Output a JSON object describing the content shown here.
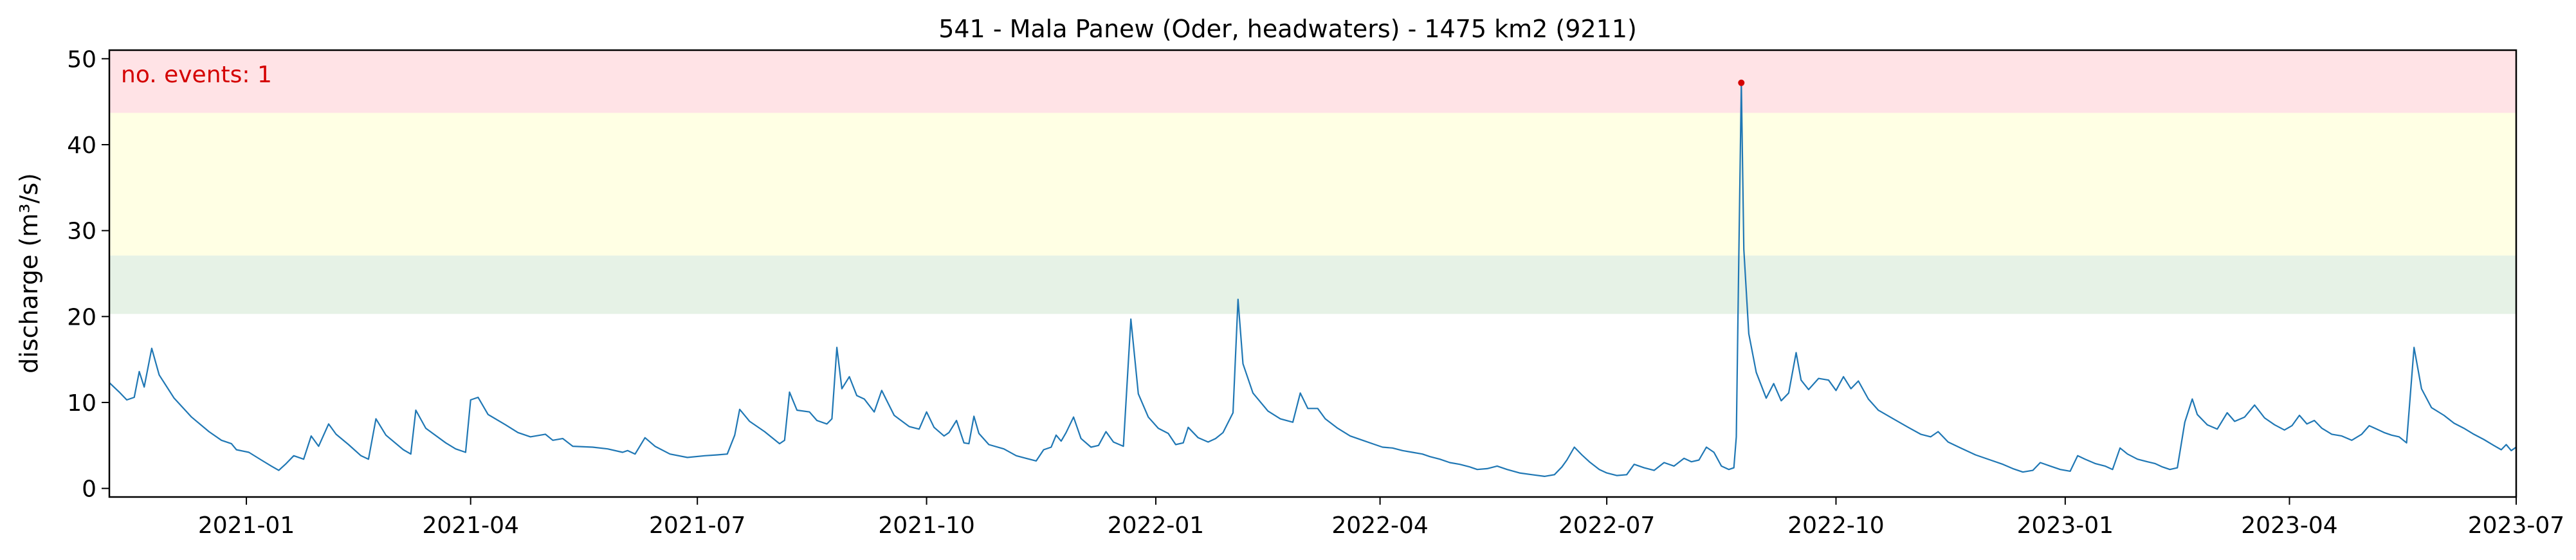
{
  "chart_data": {
    "type": "line",
    "title": "541 - Mala Panew (Oder, headwaters) - 1475 km2 (9211)",
    "xlabel": "",
    "ylabel": "discharge (m³/s)",
    "xlim": [
      "2020-11-07",
      "2023-07-01"
    ],
    "ylim": [
      -1,
      51
    ],
    "x_ticks": [
      "2021-01",
      "2021-04",
      "2021-07",
      "2021-10",
      "2022-01",
      "2022-04",
      "2022-07",
      "2022-10",
      "2023-01",
      "2023-04",
      "2023-07"
    ],
    "y_ticks": [
      0,
      10,
      20,
      30,
      40,
      50
    ],
    "bands": [
      {
        "from": 20.3,
        "to": 27.1,
        "color": "#e6f2e6"
      },
      {
        "from": 27.1,
        "to": 43.7,
        "color": "#ffffe4"
      },
      {
        "from": 43.7,
        "to": 51,
        "color": "#ffe3e6"
      }
    ],
    "annotation": "no. events: 1",
    "line_color": "#1f77b4",
    "event_color": "#d40000",
    "events": [
      {
        "x": "2022-08-24",
        "y": 47.2
      }
    ],
    "series": [
      {
        "points": [
          [
            "2020-11-07",
            12.3
          ],
          [
            "2020-11-11",
            11.2
          ],
          [
            "2020-11-14",
            10.3
          ],
          [
            "2020-11-17",
            10.6
          ],
          [
            "2020-11-19",
            13.6
          ],
          [
            "2020-11-21",
            11.8
          ],
          [
            "2020-11-24",
            16.3
          ],
          [
            "2020-11-27",
            13.2
          ],
          [
            "2020-12-03",
            10.5
          ],
          [
            "2020-12-10",
            8.3
          ],
          [
            "2020-12-17",
            6.6
          ],
          [
            "2020-12-22",
            5.6
          ],
          [
            "2020-12-26",
            5.2
          ],
          [
            "2020-12-28",
            4.5
          ],
          [
            "2021-01-02",
            4.2
          ],
          [
            "2021-01-07",
            3.3
          ],
          [
            "2021-01-11",
            2.6
          ],
          [
            "2021-01-14",
            2.1
          ],
          [
            "2021-01-17",
            2.9
          ],
          [
            "2021-01-20",
            3.8
          ],
          [
            "2021-01-24",
            3.4
          ],
          [
            "2021-01-27",
            6.1
          ],
          [
            "2021-01-30",
            4.9
          ],
          [
            "2021-02-03",
            7.5
          ],
          [
            "2021-02-06",
            6.3
          ],
          [
            "2021-02-11",
            5.1
          ],
          [
            "2021-02-16",
            3.8
          ],
          [
            "2021-02-19",
            3.4
          ],
          [
            "2021-02-22",
            8.1
          ],
          [
            "2021-02-26",
            6.2
          ],
          [
            "2021-03-05",
            4.5
          ],
          [
            "2021-03-08",
            4.0
          ],
          [
            "2021-03-10",
            9.1
          ],
          [
            "2021-03-14",
            7.0
          ],
          [
            "2021-03-22",
            5.3
          ],
          [
            "2021-03-26",
            4.6
          ],
          [
            "2021-03-30",
            4.2
          ],
          [
            "2021-04-01",
            10.3
          ],
          [
            "2021-04-04",
            10.6
          ],
          [
            "2021-04-08",
            8.6
          ],
          [
            "2021-04-15",
            7.4
          ],
          [
            "2021-04-20",
            6.5
          ],
          [
            "2021-04-25",
            6.0
          ],
          [
            "2021-05-01",
            6.3
          ],
          [
            "2021-05-04",
            5.6
          ],
          [
            "2021-05-08",
            5.8
          ],
          [
            "2021-05-12",
            4.9
          ],
          [
            "2021-05-20",
            4.8
          ],
          [
            "2021-05-26",
            4.6
          ],
          [
            "2021-06-01",
            4.2
          ],
          [
            "2021-06-03",
            4.4
          ],
          [
            "2021-06-06",
            4.0
          ],
          [
            "2021-06-10",
            5.9
          ],
          [
            "2021-06-14",
            4.9
          ],
          [
            "2021-06-20",
            4.0
          ],
          [
            "2021-06-27",
            3.6
          ],
          [
            "2021-07-04",
            3.8
          ],
          [
            "2021-07-09",
            3.9
          ],
          [
            "2021-07-13",
            4.0
          ],
          [
            "2021-07-16",
            6.2
          ],
          [
            "2021-07-18",
            9.2
          ],
          [
            "2021-07-22",
            7.8
          ],
          [
            "2021-07-28",
            6.6
          ],
          [
            "2021-08-03",
            5.2
          ],
          [
            "2021-08-05",
            5.6
          ],
          [
            "2021-08-07",
            11.2
          ],
          [
            "2021-08-10",
            9.1
          ],
          [
            "2021-08-15",
            8.9
          ],
          [
            "2021-08-18",
            7.9
          ],
          [
            "2021-08-22",
            7.5
          ],
          [
            "2021-08-24",
            8.1
          ],
          [
            "2021-08-26",
            16.4
          ],
          [
            "2021-08-28",
            11.6
          ],
          [
            "2021-08-31",
            13.0
          ],
          [
            "2021-09-03",
            10.8
          ],
          [
            "2021-09-06",
            10.4
          ],
          [
            "2021-09-10",
            8.9
          ],
          [
            "2021-09-13",
            11.4
          ],
          [
            "2021-09-18",
            8.5
          ],
          [
            "2021-09-24",
            7.2
          ],
          [
            "2021-09-28",
            6.9
          ],
          [
            "2021-10-01",
            8.9
          ],
          [
            "2021-10-04",
            7.1
          ],
          [
            "2021-10-08",
            6.1
          ],
          [
            "2021-10-10",
            6.5
          ],
          [
            "2021-10-13",
            7.9
          ],
          [
            "2021-10-16",
            5.3
          ],
          [
            "2021-10-18",
            5.2
          ],
          [
            "2021-10-20",
            8.4
          ],
          [
            "2021-10-22",
            6.4
          ],
          [
            "2021-10-26",
            5.1
          ],
          [
            "2021-11-01",
            4.6
          ],
          [
            "2021-11-06",
            3.8
          ],
          [
            "2021-11-10",
            3.5
          ],
          [
            "2021-11-14",
            3.2
          ],
          [
            "2021-11-17",
            4.5
          ],
          [
            "2021-11-20",
            4.8
          ],
          [
            "2021-11-22",
            6.2
          ],
          [
            "2021-11-24",
            5.5
          ],
          [
            "2021-11-26",
            6.5
          ],
          [
            "2021-11-29",
            8.3
          ],
          [
            "2021-12-02",
            5.8
          ],
          [
            "2021-12-06",
            4.8
          ],
          [
            "2021-12-09",
            5.0
          ],
          [
            "2021-12-12",
            6.6
          ],
          [
            "2021-12-15",
            5.4
          ],
          [
            "2021-12-19",
            4.9
          ],
          [
            "2021-12-22",
            19.7
          ],
          [
            "2021-12-25",
            11.0
          ],
          [
            "2021-12-29",
            8.3
          ],
          [
            "2022-01-02",
            7.0
          ],
          [
            "2022-01-06",
            6.4
          ],
          [
            "2022-01-09",
            5.1
          ],
          [
            "2022-01-12",
            5.3
          ],
          [
            "2022-01-14",
            7.1
          ],
          [
            "2022-01-18",
            5.9
          ],
          [
            "2022-01-22",
            5.4
          ],
          [
            "2022-01-25",
            5.8
          ],
          [
            "2022-01-28",
            6.5
          ],
          [
            "2022-02-01",
            8.8
          ],
          [
            "2022-02-03",
            22.0
          ],
          [
            "2022-02-05",
            14.5
          ],
          [
            "2022-02-09",
            11.1
          ],
          [
            "2022-02-15",
            9.0
          ],
          [
            "2022-02-20",
            8.1
          ],
          [
            "2022-02-25",
            7.7
          ],
          [
            "2022-02-28",
            11.1
          ],
          [
            "2022-03-03",
            9.3
          ],
          [
            "2022-03-07",
            9.3
          ],
          [
            "2022-03-10",
            8.1
          ],
          [
            "2022-03-15",
            7.0
          ],
          [
            "2022-03-20",
            6.1
          ],
          [
            "2022-03-25",
            5.6
          ],
          [
            "2022-03-30",
            5.1
          ],
          [
            "2022-04-02",
            4.8
          ],
          [
            "2022-04-06",
            4.7
          ],
          [
            "2022-04-10",
            4.4
          ],
          [
            "2022-04-14",
            4.2
          ],
          [
            "2022-04-18",
            4.0
          ],
          [
            "2022-04-21",
            3.7
          ],
          [
            "2022-04-25",
            3.4
          ],
          [
            "2022-04-29",
            3.0
          ],
          [
            "2022-05-03",
            2.8
          ],
          [
            "2022-05-07",
            2.5
          ],
          [
            "2022-05-10",
            2.2
          ],
          [
            "2022-05-14",
            2.3
          ],
          [
            "2022-05-18",
            2.6
          ],
          [
            "2022-05-22",
            2.2
          ],
          [
            "2022-05-27",
            1.8
          ],
          [
            "2022-06-01",
            1.6
          ],
          [
            "2022-06-06",
            1.4
          ],
          [
            "2022-06-10",
            1.6
          ],
          [
            "2022-06-13",
            2.5
          ],
          [
            "2022-06-15",
            3.3
          ],
          [
            "2022-06-18",
            4.8
          ],
          [
            "2022-06-21",
            3.9
          ],
          [
            "2022-06-24",
            3.1
          ],
          [
            "2022-06-28",
            2.2
          ],
          [
            "2022-07-01",
            1.8
          ],
          [
            "2022-07-05",
            1.5
          ],
          [
            "2022-07-09",
            1.6
          ],
          [
            "2022-07-12",
            2.8
          ],
          [
            "2022-07-16",
            2.4
          ],
          [
            "2022-07-20",
            2.1
          ],
          [
            "2022-07-24",
            3.0
          ],
          [
            "2022-07-28",
            2.6
          ],
          [
            "2022-08-01",
            3.5
          ],
          [
            "2022-08-04",
            3.1
          ],
          [
            "2022-08-07",
            3.3
          ],
          [
            "2022-08-10",
            4.8
          ],
          [
            "2022-08-13",
            4.2
          ],
          [
            "2022-08-16",
            2.6
          ],
          [
            "2022-08-19",
            2.2
          ],
          [
            "2022-08-21",
            2.4
          ],
          [
            "2022-08-22",
            6.0
          ],
          [
            "2022-08-23",
            27.0
          ],
          [
            "2022-08-24",
            47.2
          ],
          [
            "2022-08-25",
            27.8
          ],
          [
            "2022-08-27",
            18.0
          ],
          [
            "2022-08-30",
            13.5
          ],
          [
            "2022-09-03",
            10.5
          ],
          [
            "2022-09-06",
            12.2
          ],
          [
            "2022-09-09",
            10.2
          ],
          [
            "2022-09-12",
            11.1
          ],
          [
            "2022-09-15",
            15.8
          ],
          [
            "2022-09-17",
            12.6
          ],
          [
            "2022-09-20",
            11.5
          ],
          [
            "2022-09-24",
            12.8
          ],
          [
            "2022-09-28",
            12.6
          ],
          [
            "2022-10-01",
            11.4
          ],
          [
            "2022-10-04",
            13.0
          ],
          [
            "2022-10-07",
            11.6
          ],
          [
            "2022-10-10",
            12.5
          ],
          [
            "2022-10-14",
            10.4
          ],
          [
            "2022-10-18",
            9.1
          ],
          [
            "2022-10-24",
            8.1
          ],
          [
            "2022-10-30",
            7.1
          ],
          [
            "2022-11-04",
            6.3
          ],
          [
            "2022-11-08",
            6.0
          ],
          [
            "2022-11-11",
            6.6
          ],
          [
            "2022-11-15",
            5.4
          ],
          [
            "2022-11-20",
            4.7
          ],
          [
            "2022-11-26",
            3.9
          ],
          [
            "2022-12-02",
            3.3
          ],
          [
            "2022-12-07",
            2.8
          ],
          [
            "2022-12-11",
            2.3
          ],
          [
            "2022-12-15",
            1.9
          ],
          [
            "2022-12-19",
            2.1
          ],
          [
            "2022-12-22",
            3.0
          ],
          [
            "2022-12-26",
            2.6
          ],
          [
            "2022-12-30",
            2.2
          ],
          [
            "2023-01-03",
            2.0
          ],
          [
            "2023-01-06",
            3.8
          ],
          [
            "2023-01-09",
            3.4
          ],
          [
            "2023-01-13",
            2.9
          ],
          [
            "2023-01-17",
            2.6
          ],
          [
            "2023-01-20",
            2.2
          ],
          [
            "2023-01-23",
            4.7
          ],
          [
            "2023-01-26",
            4.0
          ],
          [
            "2023-01-30",
            3.4
          ],
          [
            "2023-02-03",
            3.1
          ],
          [
            "2023-02-06",
            2.9
          ],
          [
            "2023-02-09",
            2.5
          ],
          [
            "2023-02-12",
            2.2
          ],
          [
            "2023-02-15",
            2.4
          ],
          [
            "2023-02-18",
            7.7
          ],
          [
            "2023-02-21",
            10.4
          ],
          [
            "2023-02-23",
            8.6
          ],
          [
            "2023-02-27",
            7.4
          ],
          [
            "2023-03-03",
            6.9
          ],
          [
            "2023-03-07",
            8.8
          ],
          [
            "2023-03-10",
            7.8
          ],
          [
            "2023-03-14",
            8.3
          ],
          [
            "2023-03-18",
            9.7
          ],
          [
            "2023-03-22",
            8.2
          ],
          [
            "2023-03-26",
            7.4
          ],
          [
            "2023-03-30",
            6.8
          ],
          [
            "2023-04-02",
            7.3
          ],
          [
            "2023-04-05",
            8.5
          ],
          [
            "2023-04-08",
            7.5
          ],
          [
            "2023-04-11",
            7.9
          ],
          [
            "2023-04-14",
            7.0
          ],
          [
            "2023-04-18",
            6.3
          ],
          [
            "2023-04-22",
            6.1
          ],
          [
            "2023-04-26",
            5.6
          ],
          [
            "2023-04-30",
            6.3
          ],
          [
            "2023-05-03",
            7.3
          ],
          [
            "2023-05-06",
            6.9
          ],
          [
            "2023-05-09",
            6.5
          ],
          [
            "2023-05-12",
            6.2
          ],
          [
            "2023-05-15",
            6.0
          ],
          [
            "2023-05-18",
            5.3
          ],
          [
            "2023-05-21",
            16.4
          ],
          [
            "2023-05-24",
            11.6
          ],
          [
            "2023-05-28",
            9.4
          ],
          [
            "2023-06-02",
            8.5
          ],
          [
            "2023-06-06",
            7.6
          ],
          [
            "2023-06-10",
            7.0
          ],
          [
            "2023-06-14",
            6.3
          ],
          [
            "2023-06-18",
            5.7
          ],
          [
            "2023-06-22",
            5.0
          ],
          [
            "2023-06-25",
            4.5
          ],
          [
            "2023-06-27",
            5.1
          ],
          [
            "2023-06-29",
            4.4
          ],
          [
            "2023-07-01",
            4.8
          ]
        ]
      }
    ]
  }
}
